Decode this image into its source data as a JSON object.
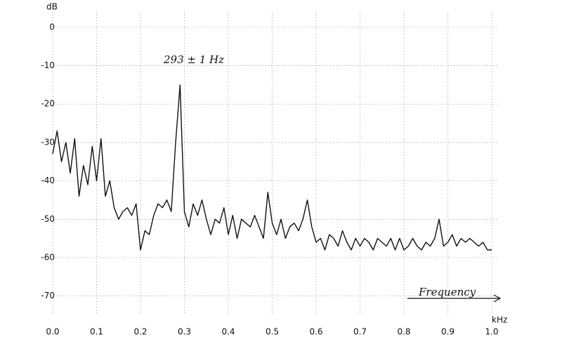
{
  "chart_data": {
    "type": "line",
    "y_unit": "dB",
    "x_unit": "kHz",
    "annotations": [
      "293 ± 1  Hz",
      "Frequency"
    ],
    "color": "#111111",
    "grid": true,
    "xlim": [
      0,
      1
    ],
    "ylim": [
      -75,
      4
    ],
    "xticks": [
      {
        "value": 0,
        "label": "0.0"
      },
      0.1,
      0.2,
      0.3,
      0.4,
      0.5,
      0.6,
      0.7,
      0.8,
      0.9,
      {
        "value": 1,
        "label": "1.0"
      }
    ],
    "yticks": [
      0,
      -10,
      -20,
      -30,
      -40,
      -50,
      -60,
      -70
    ],
    "x": [
      0,
      0.01,
      0.02,
      0.03,
      0.04,
      0.05,
      0.06,
      0.07,
      0.08,
      0.09,
      0.1,
      0.11,
      0.12,
      0.13,
      0.14,
      0.15,
      0.16,
      0.17,
      0.18,
      0.19,
      0.2,
      0.21,
      0.22,
      0.23,
      0.24,
      0.25,
      0.26,
      0.27,
      0.28,
      0.29,
      0.3,
      0.31,
      0.32,
      0.33,
      0.34,
      0.35,
      0.36,
      0.37,
      0.38,
      0.39,
      0.4,
      0.41,
      0.42,
      0.43,
      0.44,
      0.45,
      0.46,
      0.47,
      0.48,
      0.49,
      0.5,
      0.51,
      0.52,
      0.53,
      0.54,
      0.55,
      0.56,
      0.57,
      0.58,
      0.59,
      0.6,
      0.61,
      0.62,
      0.63,
      0.64,
      0.65,
      0.66,
      0.67,
      0.68,
      0.69,
      0.7,
      0.71,
      0.72,
      0.73,
      0.74,
      0.75,
      0.76,
      0.77,
      0.78,
      0.79,
      0.8,
      0.81,
      0.82,
      0.83,
      0.84,
      0.85,
      0.86,
      0.87,
      0.88,
      0.89,
      0.9,
      0.91,
      0.92,
      0.93,
      0.94,
      0.95,
      0.96,
      0.97,
      0.98,
      0.99,
      1
    ],
    "values": [
      -33,
      -27,
      -35,
      -30,
      -38,
      -29,
      -44,
      -36,
      -41,
      -31,
      -40,
      -29,
      -44,
      -40,
      -47,
      -50,
      -48,
      -47,
      -49,
      -46,
      -58,
      -53,
      -54,
      -49,
      -46,
      -47,
      -45,
      -48,
      -30,
      -15,
      -48,
      -52,
      -46,
      -49,
      -45,
      -50,
      -54,
      -50,
      -51,
      -47,
      -54,
      -49,
      -55,
      -50,
      -51,
      -52,
      -49,
      -52,
      -55,
      -43,
      -51,
      -54,
      -50,
      -55,
      -52,
      -51,
      -53,
      -50,
      -45,
      -52,
      -56,
      -55,
      -58,
      -54,
      -55,
      -57,
      -53,
      -56,
      -58,
      -55,
      -57,
      -55,
      -56,
      -58,
      -55,
      -56,
      -57,
      -55,
      -58,
      -55,
      -58,
      -57,
      -55,
      -57,
      -58,
      -56,
      -57,
      -55,
      -50,
      -57,
      -56,
      -54,
      -57,
      -55,
      -56,
      -55,
      -56,
      -57,
      -56,
      -58,
      -58
    ]
  }
}
